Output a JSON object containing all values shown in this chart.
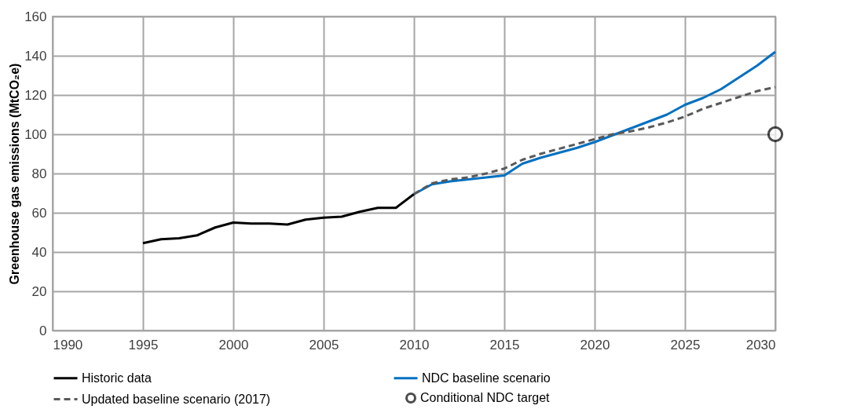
{
  "chart_data": {
    "type": "line",
    "ylabel": "Greenhouse gas emissions (MtCO₂e)",
    "xlim": [
      1990,
      2030
    ],
    "xticks": [
      1990,
      1995,
      2000,
      2005,
      2010,
      2015,
      2020,
      2025,
      2030
    ],
    "ylim": [
      0,
      160
    ],
    "yticks": [
      0,
      20,
      40,
      60,
      80,
      100,
      120,
      140,
      160
    ],
    "grid": true,
    "legend": "bottom",
    "series": [
      {
        "name": "Historic data",
        "type": "line",
        "color": "#000000",
        "line_style": "solid",
        "x": [
          1995,
          1996,
          1997,
          1998,
          1999,
          2000,
          2001,
          2002,
          2003,
          2004,
          2005,
          2006,
          2007,
          2008,
          2009,
          2010
        ],
        "values": [
          44.5,
          46.5,
          47,
          48.5,
          52.5,
          55,
          54.5,
          54.5,
          54,
          56.5,
          57.5,
          58,
          60.5,
          62.5,
          62.5,
          69.5
        ]
      },
      {
        "name": "NDC baseline scenario",
        "type": "line",
        "color": "#0070c0",
        "line_style": "solid",
        "x": [
          2010,
          2011,
          2012,
          2013,
          2014,
          2015,
          2016,
          2017,
          2018,
          2019,
          2020,
          2021,
          2022,
          2023,
          2024,
          2025,
          2026,
          2027,
          2028,
          2029,
          2030
        ],
        "values": [
          69.5,
          74.5,
          76,
          77,
          78,
          79,
          85,
          88,
          90.5,
          93,
          96,
          99.5,
          103,
          106.5,
          110,
          115,
          118.5,
          123,
          129,
          135,
          142
        ]
      },
      {
        "name": "Updated baseline scenario (2017)",
        "type": "line",
        "color": "#595959",
        "line_style": "dashed",
        "x": [
          2010,
          2011,
          2012,
          2013,
          2014,
          2015,
          2016,
          2017,
          2018,
          2019,
          2020,
          2021,
          2022,
          2023,
          2024,
          2025,
          2026,
          2027,
          2028,
          2029,
          2030
        ],
        "values": [
          69.5,
          75,
          77,
          78,
          80,
          82.5,
          87,
          90,
          92.5,
          95,
          97.5,
          100,
          101.5,
          103.5,
          106,
          109,
          113,
          116,
          119,
          122,
          124
        ]
      },
      {
        "name": "Conditional NDC target",
        "type": "scatter",
        "marker": "circle",
        "color": "#000000",
        "x": [
          2030
        ],
        "values": [
          100
        ]
      }
    ]
  }
}
